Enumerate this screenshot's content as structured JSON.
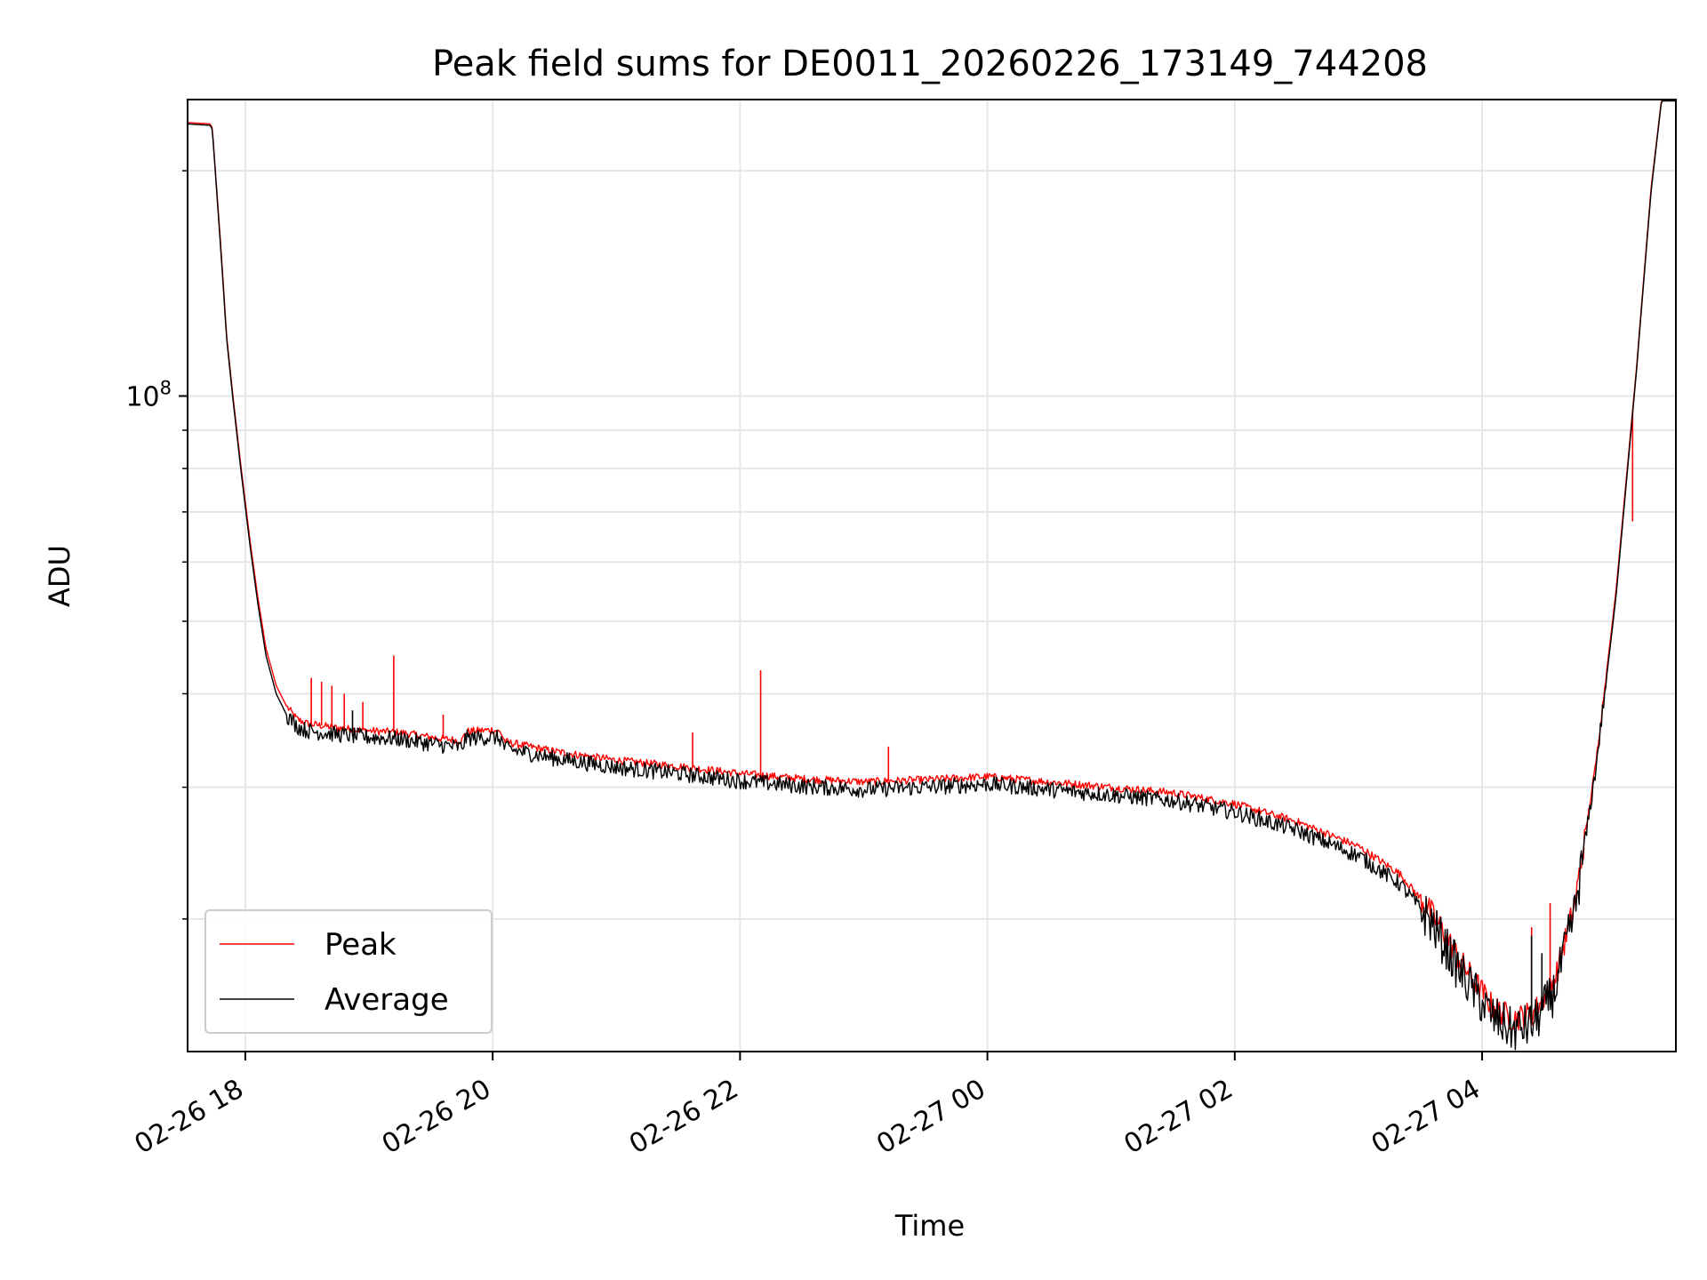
{
  "chart_data": {
    "type": "line",
    "title": "Peak field sums for DE0011_20260226_173149_744208",
    "xlabel": "Time",
    "ylabel": "ADU",
    "y_scale": "log",
    "grid": true,
    "legend_position": "lower-left",
    "x_range": [
      "2026-02-26 17:32",
      "2026-02-27 05:34"
    ],
    "y_range": [
      13300000,
      249000000
    ],
    "x_ticks": [
      {
        "t": "2026-02-26 18:00",
        "label": "02-26 18"
      },
      {
        "t": "2026-02-26 20:00",
        "label": "02-26 20"
      },
      {
        "t": "2026-02-26 22:00",
        "label": "02-26 22"
      },
      {
        "t": "2026-02-27 00:00",
        "label": "02-27 00"
      },
      {
        "t": "2026-02-27 02:00",
        "label": "02-27 02"
      },
      {
        "t": "2026-02-27 04:00",
        "label": "02-27 04"
      }
    ],
    "y_major_ticks": [
      {
        "value": 100000000,
        "base": "10",
        "exponent": "8"
      }
    ],
    "y_minor_ticks": [
      20000000,
      30000000,
      40000000,
      50000000,
      60000000,
      70000000,
      80000000,
      90000000,
      200000000
    ],
    "series": [
      {
        "name": "Peak",
        "color": "#ff0000",
        "points": [
          [
            "2026-02-26 17:32",
            232000000
          ],
          [
            "2026-02-26 17:43",
            231000000
          ],
          [
            "2026-02-26 17:44",
            228000000
          ],
          [
            "2026-02-26 17:48",
            160000000
          ],
          [
            "2026-02-26 17:51",
            120000000
          ],
          [
            "2026-02-26 17:54",
            100000000
          ],
          [
            "2026-02-26 17:58",
            80000000
          ],
          [
            "2026-02-26 18:02",
            65000000
          ],
          [
            "2026-02-26 18:06",
            54000000
          ],
          [
            "2026-02-26 18:10",
            46000000
          ],
          [
            "2026-02-26 18:15",
            41000000
          ],
          [
            "2026-02-26 18:20",
            38500000
          ],
          [
            "2026-02-26 18:25",
            37000000
          ],
          [
            "2026-02-26 18:30",
            36500000
          ],
          [
            "2026-02-26 18:45",
            36000000
          ],
          [
            "2026-02-26 19:00",
            35700000
          ],
          [
            "2026-02-26 19:15",
            35500000
          ],
          [
            "2026-02-26 19:30",
            35000000
          ],
          [
            "2026-02-26 19:45",
            34600000
          ],
          [
            "2026-02-26 19:47",
            35600000
          ],
          [
            "2026-02-26 20:00",
            35800000
          ],
          [
            "2026-02-26 20:04",
            35500000
          ],
          [
            "2026-02-26 20:06",
            34500000
          ],
          [
            "2026-02-26 20:30",
            33500000
          ],
          [
            "2026-02-26 21:00",
            32600000
          ],
          [
            "2026-02-26 21:30",
            32000000
          ],
          [
            "2026-02-26 22:00",
            31300000
          ],
          [
            "2026-02-26 22:30",
            30800000
          ],
          [
            "2026-02-26 23:00",
            30500000
          ],
          [
            "2026-02-26 23:30",
            30700000
          ],
          [
            "2026-02-27 00:00",
            31000000
          ],
          [
            "2026-02-27 00:30",
            30500000
          ],
          [
            "2026-02-27 01:00",
            30000000
          ],
          [
            "2026-02-27 01:30",
            29500000
          ],
          [
            "2026-02-27 02:00",
            28500000
          ],
          [
            "2026-02-27 02:30",
            27000000
          ],
          [
            "2026-02-27 03:00",
            25000000
          ],
          [
            "2026-02-27 03:20",
            23000000
          ],
          [
            "2026-02-27 03:35",
            20500000
          ],
          [
            "2026-02-27 03:50",
            17500000
          ],
          [
            "2026-02-27 04:05",
            15300000
          ],
          [
            "2026-02-27 04:15",
            14700000
          ],
          [
            "2026-02-27 04:25",
            15000000
          ],
          [
            "2026-02-27 04:35",
            16500000
          ],
          [
            "2026-02-27 04:45",
            21000000
          ],
          [
            "2026-02-27 04:55",
            32000000
          ],
          [
            "2026-02-27 05:05",
            55000000
          ],
          [
            "2026-02-27 05:15",
            110000000
          ],
          [
            "2026-02-27 05:22",
            190000000
          ],
          [
            "2026-02-27 05:27",
            249000000
          ],
          [
            "2026-02-27 05:34",
            249000000
          ]
        ],
        "spikes": [
          [
            "2026-02-26 18:32",
            42000000
          ],
          [
            "2026-02-26 18:37",
            41500000
          ],
          [
            "2026-02-26 18:42",
            41000000
          ],
          [
            "2026-02-26 18:48",
            40000000
          ],
          [
            "2026-02-26 18:57",
            39000000
          ],
          [
            "2026-02-26 19:12",
            45000000
          ],
          [
            "2026-02-26 19:36",
            37500000
          ],
          [
            "2026-02-26 21:37",
            35500000
          ],
          [
            "2026-02-26 22:10",
            43000000
          ],
          [
            "2026-02-26 23:12",
            34000000
          ],
          [
            "2026-02-27 03:38",
            20500000
          ],
          [
            "2026-02-27 04:24",
            19500000
          ],
          [
            "2026-02-27 04:33",
            21000000
          ],
          [
            "2026-02-27 05:13",
            68000000
          ]
        ]
      },
      {
        "name": "Average",
        "color": "#000000",
        "points": [
          [
            "2026-02-26 17:32",
            231000000
          ],
          [
            "2026-02-26 17:43",
            230000000
          ],
          [
            "2026-02-26 17:44",
            227000000
          ],
          [
            "2026-02-26 17:48",
            158000000
          ],
          [
            "2026-02-26 17:51",
            119000000
          ],
          [
            "2026-02-26 17:54",
            99000000
          ],
          [
            "2026-02-26 17:58",
            79000000
          ],
          [
            "2026-02-26 18:02",
            64000000
          ],
          [
            "2026-02-26 18:06",
            53000000
          ],
          [
            "2026-02-26 18:10",
            45000000
          ],
          [
            "2026-02-26 18:15",
            40000000
          ],
          [
            "2026-02-26 18:20",
            37500000
          ],
          [
            "2026-02-26 18:25",
            36200000
          ],
          [
            "2026-02-26 18:30",
            35700000
          ],
          [
            "2026-02-26 18:45",
            35300000
          ],
          [
            "2026-02-26 19:00",
            35000000
          ],
          [
            "2026-02-26 19:15",
            34800000
          ],
          [
            "2026-02-26 19:30",
            34300000
          ],
          [
            "2026-02-26 19:45",
            33900000
          ],
          [
            "2026-02-26 19:47",
            34900000
          ],
          [
            "2026-02-26 20:00",
            35000000
          ],
          [
            "2026-02-26 20:04",
            34800000
          ],
          [
            "2026-02-26 20:06",
            33800000
          ],
          [
            "2026-02-26 20:30",
            32800000
          ],
          [
            "2026-02-26 21:00",
            31900000
          ],
          [
            "2026-02-26 21:30",
            31300000
          ],
          [
            "2026-02-26 22:00",
            30600000
          ],
          [
            "2026-02-26 22:30",
            30100000
          ],
          [
            "2026-02-26 23:00",
            29800000
          ],
          [
            "2026-02-26 23:30",
            30000000
          ],
          [
            "2026-02-27 00:00",
            30300000
          ],
          [
            "2026-02-27 00:30",
            29800000
          ],
          [
            "2026-02-27 01:00",
            29300000
          ],
          [
            "2026-02-27 01:30",
            28800000
          ],
          [
            "2026-02-27 02:00",
            27800000
          ],
          [
            "2026-02-27 02:30",
            26300000
          ],
          [
            "2026-02-27 03:00",
            24300000
          ],
          [
            "2026-02-27 03:20",
            22300000
          ],
          [
            "2026-02-27 03:35",
            19900000
          ],
          [
            "2026-02-27 03:50",
            16900000
          ],
          [
            "2026-02-27 04:05",
            14800000
          ],
          [
            "2026-02-27 04:15",
            14200000
          ],
          [
            "2026-02-27 04:25",
            14500000
          ],
          [
            "2026-02-27 04:35",
            16000000
          ],
          [
            "2026-02-27 04:45",
            20500000
          ],
          [
            "2026-02-27 04:55",
            31500000
          ],
          [
            "2026-02-27 05:05",
            54000000
          ],
          [
            "2026-02-27 05:15",
            109000000
          ],
          [
            "2026-02-27 05:22",
            188000000
          ],
          [
            "2026-02-27 05:27",
            248000000
          ],
          [
            "2026-02-27 05:34",
            248000000
          ]
        ],
        "spikes": [
          [
            "2026-02-26 18:52",
            38000000
          ],
          [
            "2026-02-27 03:38",
            19500000
          ],
          [
            "2026-02-27 04:24",
            19000000
          ],
          [
            "2026-02-27 04:29",
            18000000
          ],
          [
            "2026-02-27 04:33",
            16500000
          ]
        ]
      }
    ]
  }
}
